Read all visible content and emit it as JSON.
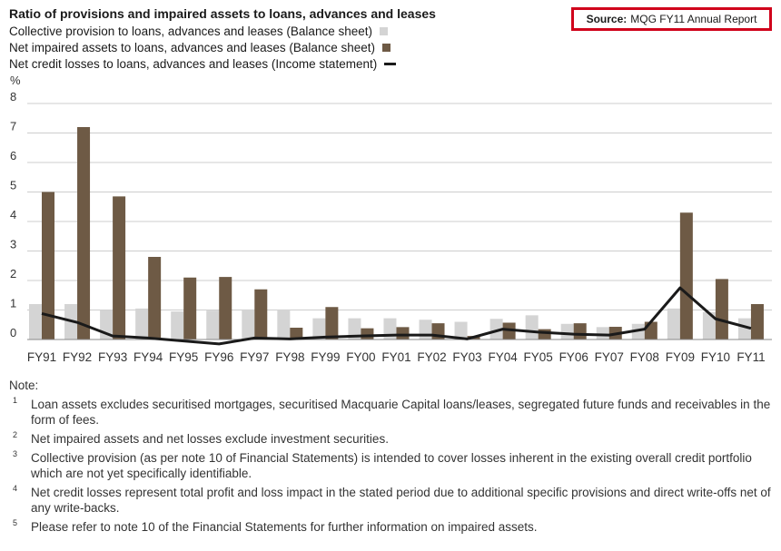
{
  "title": "Ratio of provisions and impaired assets to loans, advances and leases",
  "source": {
    "label": "Source:",
    "text": "MQG FY11 Annual Report"
  },
  "colors": {
    "collective": "#d4d4d4",
    "net_impaired": "#6e5a45",
    "credit_losses": "#1a1a1a",
    "source_border": "#d0021b"
  },
  "chart_data": {
    "type": "bar",
    "ylabel": "%",
    "ylim": [
      0,
      8
    ],
    "yticks": [
      "0",
      "1",
      "2",
      "3",
      "4",
      "5",
      "6",
      "7",
      "8"
    ],
    "grid": true,
    "categories": [
      "FY91",
      "FY92",
      "FY93",
      "FY94",
      "FY95",
      "FY96",
      "FY97",
      "FY98",
      "FY99",
      "FY00",
      "FY01",
      "FY02",
      "FY03",
      "FY04",
      "FY05",
      "FY06",
      "FY07",
      "FY08",
      "FY09",
      "FY10",
      "FY11"
    ],
    "series": [
      {
        "name": "Collective provision to loans, advances and leases (Balance sheet)",
        "kind": "bar",
        "values": [
          1.2,
          1.2,
          1.0,
          1.05,
          0.95,
          0.98,
          1.02,
          1.02,
          0.72,
          0.72,
          0.72,
          0.67,
          0.6,
          0.7,
          0.82,
          0.53,
          0.42,
          0.53,
          1.05,
          0.93,
          0.72
        ]
      },
      {
        "name": "Net impaired assets to loans, advances and leases (Balance sheet)",
        "kind": "bar",
        "values": [
          5.0,
          7.2,
          4.85,
          2.8,
          2.1,
          2.12,
          1.7,
          0.4,
          1.1,
          0.38,
          0.42,
          0.55,
          0.12,
          0.57,
          0.35,
          0.55,
          0.43,
          0.6,
          4.3,
          2.05,
          1.2
        ]
      },
      {
        "name": "Net credit losses to loans, advances and leases (Income statement)",
        "kind": "line",
        "values": [
          0.88,
          0.58,
          0.12,
          0.05,
          -0.05,
          -0.15,
          0.05,
          0.02,
          0.08,
          0.12,
          0.15,
          0.15,
          0.02,
          0.35,
          0.25,
          0.18,
          0.15,
          0.35,
          1.75,
          0.7,
          0.38
        ]
      }
    ]
  },
  "notes": {
    "heading": "Note:",
    "items": [
      {
        "num": "1",
        "text": "Loan assets excludes securitised mortgages, securitised Macquarie Capital loans/leases, segregated future funds and receivables in the form of fees."
      },
      {
        "num": "2",
        "text": "Net impaired assets and net losses exclude investment securities."
      },
      {
        "num": "3",
        "text": "Collective provision (as per note 10 of Financial Statements) is intended to cover losses inherent in the existing overall credit portfolio which are not yet specifically identifiable."
      },
      {
        "num": "4",
        "text": "Net credit losses represent total profit and loss impact in the stated period due to additional specific provisions and direct write-offs net of any write-backs."
      },
      {
        "num": "5",
        "text": "Please refer to note 10 of the Financial Statements for further information on impaired assets."
      }
    ]
  }
}
